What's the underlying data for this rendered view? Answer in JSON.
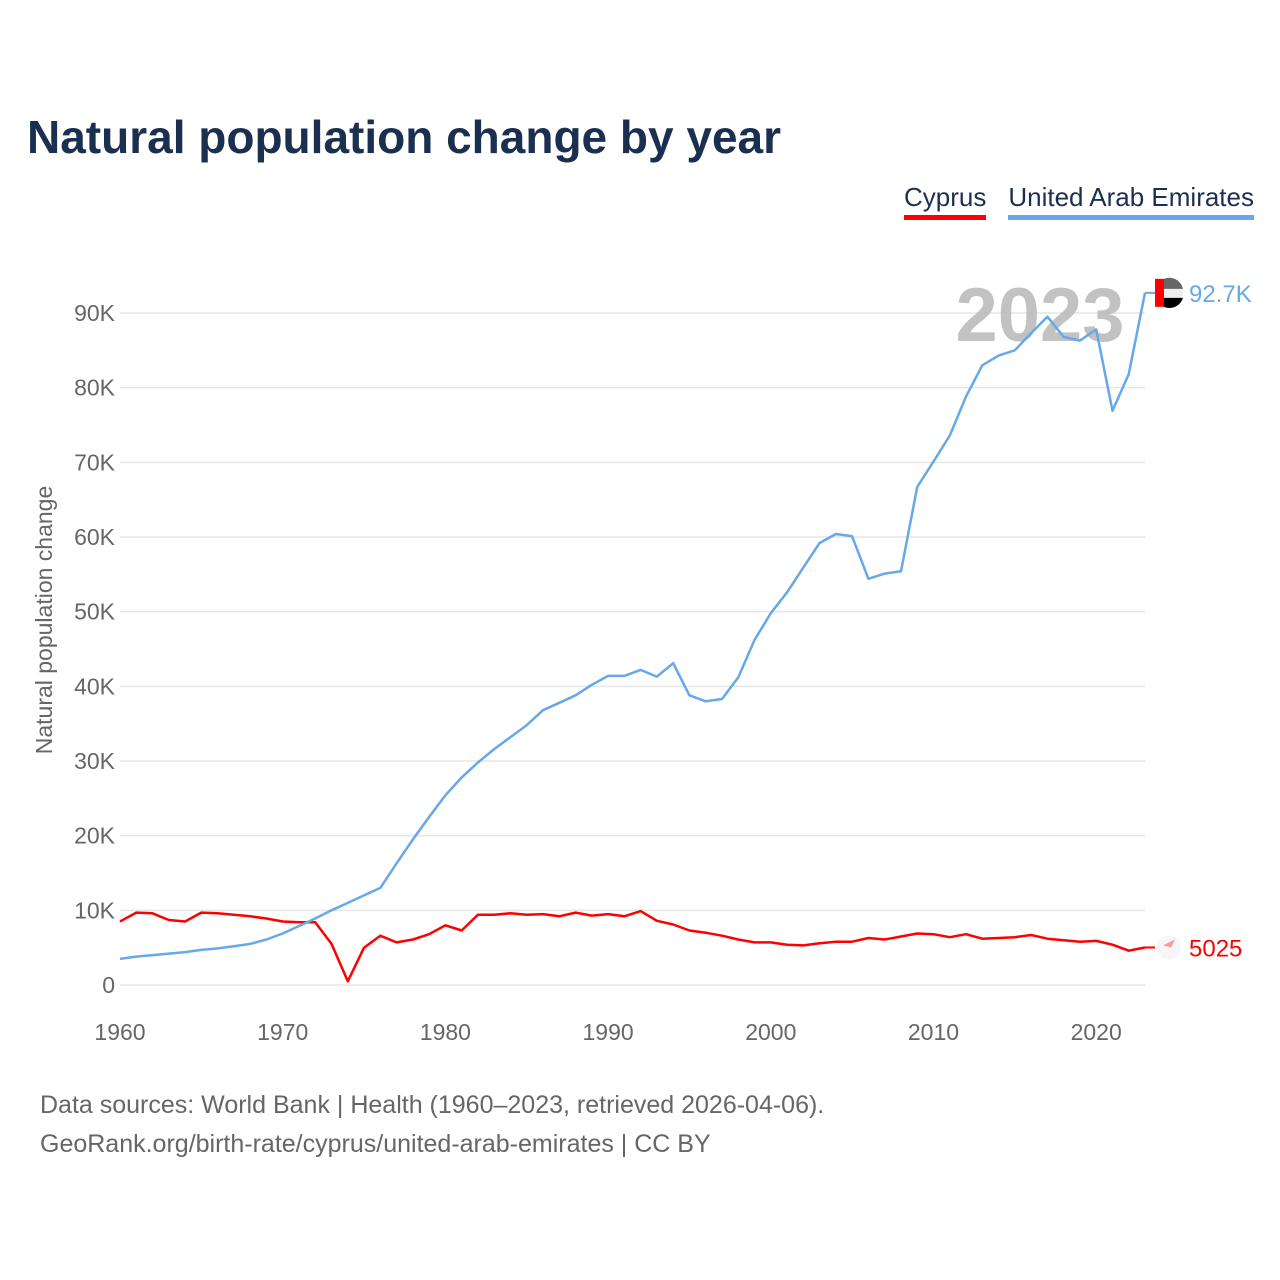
{
  "title": "Natural population change by year",
  "source_line1": "Data sources: World Bank | Health (1960–2023, retrieved 2026-04-06).",
  "source_line2": "GeoRank.org/birth-rate/cyprus/united-arab-emirates | CC BY",
  "chart_data": {
    "type": "line",
    "title": "Natural population change by year",
    "xlabel": "",
    "ylabel": "Natural population change",
    "xlim": [
      1960,
      2023
    ],
    "ylim": [
      0,
      90000
    ],
    "grid": true,
    "legend_placement": "top-right",
    "year_watermark": "2023",
    "x_ticks": [
      1960,
      1970,
      1980,
      1990,
      2000,
      2010,
      2020
    ],
    "x_tick_labels": [
      "1960",
      "1970",
      "1980",
      "1990",
      "2000",
      "2010",
      "2020"
    ],
    "y_ticks": [
      0,
      10000,
      20000,
      30000,
      40000,
      50000,
      60000,
      70000,
      80000,
      90000
    ],
    "y_tick_labels": [
      "0",
      "10K",
      "20K",
      "30K",
      "40K",
      "50K",
      "60K",
      "70K",
      "80K",
      "90K"
    ],
    "x_start": 1960,
    "series": [
      {
        "name": "Cyprus",
        "color": "#ff0000",
        "end_label": "5025",
        "values": [
          8500,
          9700,
          9600,
          8700,
          8500,
          9700,
          9600,
          9400,
          9200,
          8900,
          8500,
          8400,
          8400,
          5500,
          500,
          5000,
          6600,
          5700,
          6100,
          6800,
          8000,
          7300,
          9400,
          9400,
          9600,
          9400,
          9500,
          9200,
          9700,
          9300,
          9500,
          9200,
          9900,
          8600,
          8100,
          7300,
          7000,
          6600,
          6100,
          5700,
          5700,
          5400,
          5300,
          5600,
          5800,
          5800,
          6300,
          6100,
          6500,
          6900,
          6800,
          6400,
          6800,
          6200,
          6300,
          6400,
          6700,
          6200,
          6000,
          5800,
          5900,
          5400,
          4600,
          5025
        ]
      },
      {
        "name": "United Arab Emirates",
        "color": "#66a8ea",
        "end_label": "92.7K",
        "values": [
          3500,
          3800,
          4000,
          4200,
          4400,
          4700,
          4900,
          5200,
          5500,
          6100,
          6900,
          7900,
          8900,
          10000,
          11000,
          12000,
          13000,
          16300,
          19500,
          22500,
          25400,
          27800,
          29800,
          31600,
          33200,
          34800,
          36800,
          37800,
          38800,
          40200,
          41400,
          41400,
          42200,
          41300,
          43100,
          38800,
          38000,
          38300,
          41200,
          46200,
          49800,
          52600,
          55900,
          59200,
          60400,
          60100,
          54400,
          55100,
          55400,
          66700,
          70100,
          73600,
          78800,
          83000,
          84300,
          85000,
          87300,
          89500,
          86800,
          86300,
          87800,
          76900,
          81800,
          92700
        ]
      }
    ]
  }
}
